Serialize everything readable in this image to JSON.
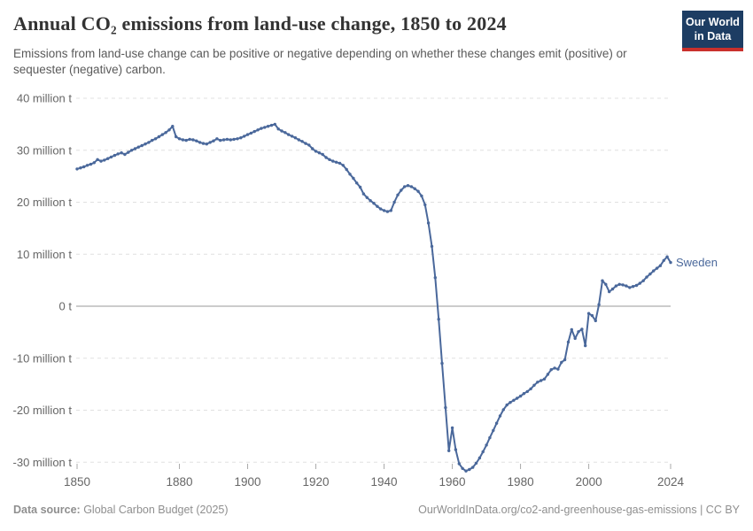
{
  "header": {
    "title": "Annual CO₂ emissions from land-use change, 1850 to 2024",
    "subtitle": "Emissions from land-use change can be positive or negative depending on whether these changes emit (positive) or sequester (negative) carbon.",
    "logo": {
      "line1": "Our World",
      "line2": "in Data"
    }
  },
  "footer": {
    "source_label": "Data source:",
    "source_value": " Global Carbon Budget (2025)",
    "link": "OurWorldInData.org/co2-and-greenhouse-gas-emissions | CC BY"
  },
  "colors": {
    "line": "#4a689b",
    "entity_label": "#4a689b",
    "gridline": "#e0e0e0",
    "zero_line": "#9a9a9a",
    "axis_text": "#666666",
    "tick_mark": "#aaaaaa",
    "logo_bg": "#1d3d63",
    "logo_red": "#c9302c"
  },
  "chart_data": {
    "type": "line",
    "title": "Annual CO₂ emissions from land-use change, 1850 to 2024",
    "unit": "million t",
    "grid": "horizontal dashed, solid zero line",
    "legend": "end-of-line entity label",
    "ylim": [
      -33,
      41
    ],
    "xlim": [
      1850,
      2024
    ],
    "yticks": [
      {
        "value": 40,
        "label": "40 million t"
      },
      {
        "value": 30,
        "label": "30 million t"
      },
      {
        "value": 20,
        "label": "20 million t"
      },
      {
        "value": 10,
        "label": "10 million t"
      },
      {
        "value": 0,
        "label": "0 t"
      },
      {
        "value": -10,
        "label": "-10 million t"
      },
      {
        "value": -20,
        "label": "-20 million t"
      },
      {
        "value": -30,
        "label": "-30 million t"
      }
    ],
    "xticks": [
      {
        "value": 1850,
        "label": "1850"
      },
      {
        "value": 1880,
        "label": "1880"
      },
      {
        "value": 1900,
        "label": "1900"
      },
      {
        "value": 1920,
        "label": "1920"
      },
      {
        "value": 1940,
        "label": "1940"
      },
      {
        "value": 1960,
        "label": "1960"
      },
      {
        "value": 1980,
        "label": "1980"
      },
      {
        "value": 2000,
        "label": "2000"
      },
      {
        "value": 2024,
        "label": "2024"
      }
    ],
    "x_start": 1850,
    "x_step": 1,
    "series": [
      {
        "name": "Sweden",
        "values": [
          26.4,
          26.6,
          26.8,
          27.1,
          27.3,
          27.6,
          28.2,
          27.9,
          28.1,
          28.4,
          28.7,
          29.0,
          29.3,
          29.5,
          29.2,
          29.6,
          30.0,
          30.3,
          30.6,
          30.9,
          31.2,
          31.5,
          31.9,
          32.2,
          32.6,
          33.0,
          33.4,
          33.9,
          34.6,
          32.6,
          32.2,
          32.0,
          31.9,
          32.1,
          32.0,
          31.8,
          31.5,
          31.3,
          31.2,
          31.5,
          31.8,
          32.2,
          31.9,
          32.0,
          32.1,
          32.0,
          32.1,
          32.2,
          32.4,
          32.7,
          33.0,
          33.3,
          33.6,
          33.9,
          34.2,
          34.4,
          34.6,
          34.8,
          35.0,
          34.1,
          33.7,
          33.4,
          33.0,
          32.7,
          32.4,
          32.0,
          31.7,
          31.3,
          31.0,
          30.3,
          29.8,
          29.5,
          29.2,
          28.6,
          28.2,
          27.9,
          27.7,
          27.5,
          27.1,
          26.3,
          25.4,
          24.6,
          23.7,
          22.9,
          21.6,
          20.9,
          20.3,
          19.8,
          19.2,
          18.7,
          18.4,
          18.2,
          18.4,
          20.0,
          21.4,
          22.3,
          23.0,
          23.2,
          23.0,
          22.6,
          22.1,
          21.2,
          19.5,
          16.0,
          11.5,
          5.5,
          -2.5,
          -11.0,
          -19.5,
          -27.8,
          -23.4,
          -27.6,
          -30.3,
          -31.2,
          -31.7,
          -31.4,
          -31.0,
          -30.2,
          -29.2,
          -28.0,
          -26.7,
          -25.3,
          -23.9,
          -22.5,
          -21.1,
          -19.9,
          -19.0,
          -18.5,
          -18.1,
          -17.7,
          -17.3,
          -16.8,
          -16.4,
          -15.9,
          -15.2,
          -14.6,
          -14.3,
          -14.0,
          -13.1,
          -12.2,
          -11.9,
          -12.1,
          -10.8,
          -10.3,
          -6.9,
          -4.5,
          -6.2,
          -4.9,
          -4.4,
          -7.6,
          -1.4,
          -1.8,
          -2.8,
          0.3,
          4.9,
          4.2,
          2.8,
          3.3,
          3.9,
          4.2,
          4.1,
          3.9,
          3.6,
          3.8,
          4.0,
          4.4,
          4.9,
          5.6,
          6.2,
          6.8,
          7.3,
          7.8,
          8.8,
          9.5,
          8.4
        ]
      }
    ]
  }
}
